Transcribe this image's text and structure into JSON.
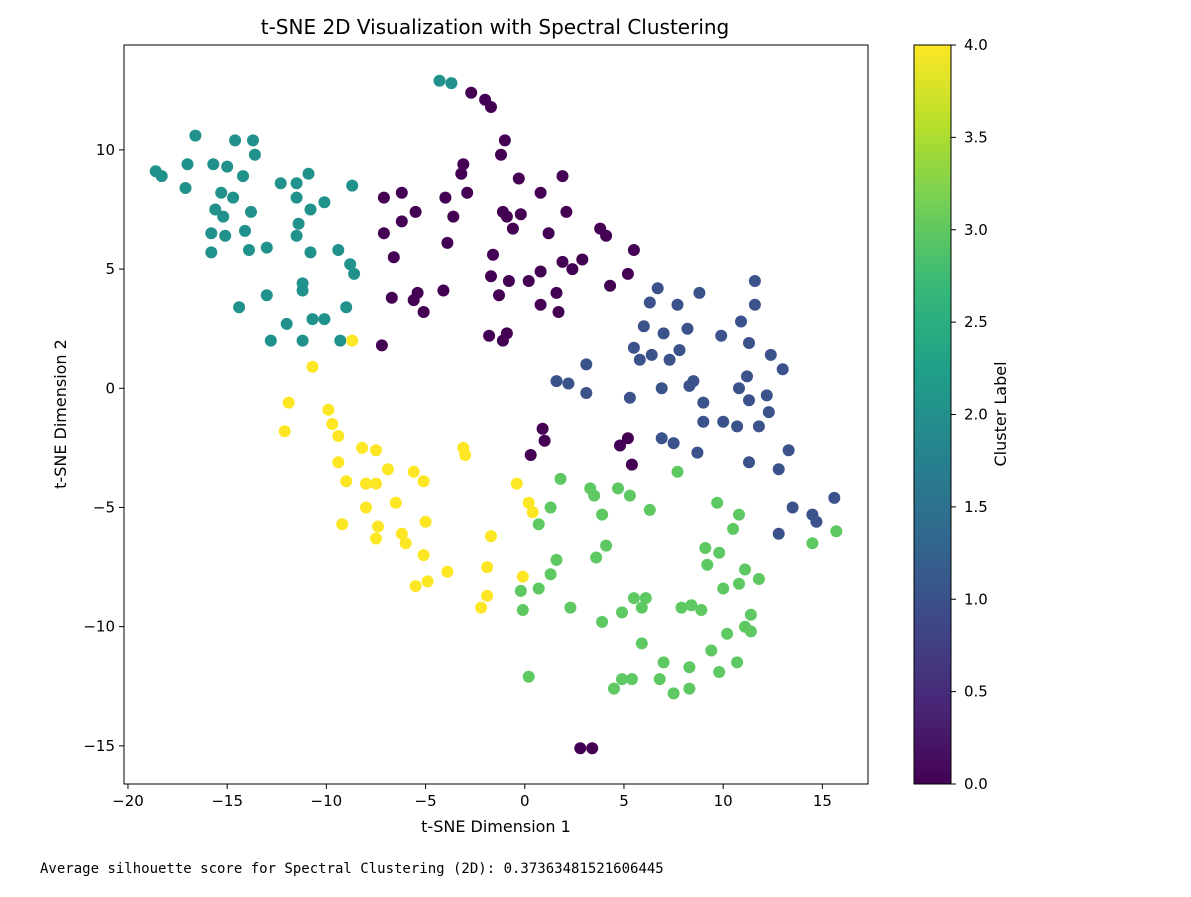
{
  "chart_data": {
    "type": "scatter",
    "title": "t-SNE 2D Visualization with Spectral Clustering",
    "xlabel": "t-SNE Dimension 1",
    "ylabel": "t-SNE Dimension 2",
    "xlim": [
      -20.2,
      17.3
    ],
    "ylim": [
      -16.6,
      14.4
    ],
    "xticks": [
      -20,
      -15,
      -10,
      -5,
      0,
      5,
      10,
      15
    ],
    "xtick_labels": [
      "−20",
      "−15",
      "−10",
      "−5",
      "0",
      "5",
      "10",
      "15"
    ],
    "yticks": [
      -15,
      -10,
      -5,
      0,
      5,
      10
    ],
    "ytick_labels": [
      "−15",
      "−10",
      "−5",
      "0",
      "5",
      "10"
    ],
    "grid": false,
    "colormap": "viridis",
    "cluster_colors": [
      "#440154",
      "#3b528b",
      "#21918c",
      "#5ec962",
      "#fde725"
    ],
    "colorbar": {
      "label": "Cluster Label",
      "range": [
        0,
        4
      ],
      "ticks": [
        0.0,
        0.5,
        1.0,
        1.5,
        2.0,
        2.5,
        3.0,
        3.5,
        4.0
      ],
      "tick_labels": [
        "0.0",
        "0.5",
        "1.0",
        "1.5",
        "2.0",
        "2.5",
        "3.0",
        "3.5",
        "4.0"
      ],
      "stops": [
        "#440154",
        "#482878",
        "#3e4989",
        "#31688e",
        "#26828e",
        "#1f9e89",
        "#35b779",
        "#6ece58",
        "#b5de2b",
        "#fde725"
      ]
    },
    "points": [
      [
        -3.7,
        12.8,
        2
      ],
      [
        -4.3,
        12.9,
        2
      ],
      [
        -16.6,
        10.6,
        2
      ],
      [
        -14.6,
        10.4,
        2
      ],
      [
        -13.7,
        10.4,
        2
      ],
      [
        -13.6,
        9.8,
        2
      ],
      [
        -15.7,
        9.4,
        2
      ],
      [
        -15.0,
        9.3,
        2
      ],
      [
        -17.0,
        9.4,
        2
      ],
      [
        -18.6,
        9.1,
        2
      ],
      [
        -18.3,
        8.9,
        2
      ],
      [
        -14.2,
        8.9,
        2
      ],
      [
        -12.3,
        8.6,
        2
      ],
      [
        -11.5,
        8.6,
        2
      ],
      [
        -10.9,
        9.0,
        2
      ],
      [
        -8.7,
        8.5,
        2
      ],
      [
        -17.1,
        8.4,
        2
      ],
      [
        -15.3,
        8.2,
        2
      ],
      [
        -14.7,
        8.0,
        2
      ],
      [
        -11.5,
        8.0,
        2
      ],
      [
        -10.1,
        7.8,
        2
      ],
      [
        -10.8,
        7.5,
        2
      ],
      [
        -15.6,
        7.5,
        2
      ],
      [
        -15.2,
        7.2,
        2
      ],
      [
        -13.8,
        7.4,
        2
      ],
      [
        -11.4,
        6.9,
        2
      ],
      [
        -14.1,
        6.6,
        2
      ],
      [
        -15.8,
        6.5,
        2
      ],
      [
        -15.1,
        6.4,
        2
      ],
      [
        -11.5,
        6.4,
        2
      ],
      [
        -13.9,
        5.8,
        2
      ],
      [
        -13.0,
        5.9,
        2
      ],
      [
        -15.8,
        5.7,
        2
      ],
      [
        -10.8,
        5.7,
        2
      ],
      [
        -9.4,
        5.8,
        2
      ],
      [
        -8.8,
        5.2,
        2
      ],
      [
        -8.6,
        4.8,
        2
      ],
      [
        -11.2,
        4.4,
        2
      ],
      [
        -11.2,
        4.1,
        2
      ],
      [
        -13.0,
        3.9,
        2
      ],
      [
        -14.4,
        3.4,
        2
      ],
      [
        -9.0,
        3.4,
        2
      ],
      [
        -10.7,
        2.9,
        2
      ],
      [
        -10.1,
        2.9,
        2
      ],
      [
        -12.0,
        2.7,
        2
      ],
      [
        -12.8,
        2.0,
        2
      ],
      [
        -11.2,
        2.0,
        2
      ],
      [
        -9.3,
        2.0,
        2
      ],
      [
        -2.7,
        12.4,
        0
      ],
      [
        -2.0,
        12.1,
        0
      ],
      [
        -1.7,
        11.8,
        0
      ],
      [
        -1.0,
        10.4,
        0
      ],
      [
        -1.2,
        9.8,
        0
      ],
      [
        -3.1,
        9.4,
        0
      ],
      [
        -3.2,
        9.0,
        0
      ],
      [
        -2.9,
        8.2,
        0
      ],
      [
        -6.2,
        8.2,
        0
      ],
      [
        -7.1,
        8.0,
        0
      ],
      [
        -4.0,
        8.0,
        0
      ],
      [
        -0.3,
        8.8,
        0
      ],
      [
        1.9,
        8.9,
        0
      ],
      [
        0.8,
        8.2,
        0
      ],
      [
        -5.5,
        7.4,
        0
      ],
      [
        -3.6,
        7.2,
        0
      ],
      [
        -6.2,
        7.0,
        0
      ],
      [
        -1.1,
        7.4,
        0
      ],
      [
        -0.9,
        7.2,
        0
      ],
      [
        -0.2,
        7.3,
        0
      ],
      [
        2.1,
        7.4,
        0
      ],
      [
        -7.1,
        6.5,
        0
      ],
      [
        -0.6,
        6.7,
        0
      ],
      [
        1.2,
        6.5,
        0
      ],
      [
        3.8,
        6.7,
        0
      ],
      [
        4.1,
        6.4,
        0
      ],
      [
        -3.9,
        6.1,
        0
      ],
      [
        5.5,
        5.8,
        0
      ],
      [
        -1.6,
        5.6,
        0
      ],
      [
        -6.6,
        5.5,
        0
      ],
      [
        1.9,
        5.3,
        0
      ],
      [
        2.9,
        5.4,
        0
      ],
      [
        2.4,
        5.0,
        0
      ],
      [
        5.2,
        4.8,
        0
      ],
      [
        -1.7,
        4.7,
        0
      ],
      [
        0.8,
        4.9,
        0
      ],
      [
        -0.8,
        4.5,
        0
      ],
      [
        0.2,
        4.5,
        0
      ],
      [
        4.3,
        4.3,
        0
      ],
      [
        -4.1,
        4.1,
        0
      ],
      [
        1.6,
        4.0,
        0
      ],
      [
        -5.4,
        4.0,
        0
      ],
      [
        -1.3,
        3.9,
        0
      ],
      [
        -6.7,
        3.8,
        0
      ],
      [
        -5.6,
        3.7,
        0
      ],
      [
        0.8,
        3.5,
        0
      ],
      [
        1.7,
        3.2,
        0
      ],
      [
        -5.1,
        3.2,
        0
      ],
      [
        -1.8,
        2.2,
        0
      ],
      [
        -0.9,
        2.3,
        0
      ],
      [
        -1.1,
        2.0,
        0
      ],
      [
        -7.2,
        1.8,
        0
      ],
      [
        0.9,
        -1.7,
        0
      ],
      [
        1.0,
        -2.2,
        0
      ],
      [
        5.2,
        -2.1,
        0
      ],
      [
        4.8,
        -2.4,
        0
      ],
      [
        0.3,
        -2.8,
        0
      ],
      [
        5.4,
        -3.2,
        0
      ],
      [
        2.8,
        -15.1,
        0
      ],
      [
        3.4,
        -15.1,
        0
      ],
      [
        11.6,
        4.5,
        1
      ],
      [
        6.7,
        4.2,
        1
      ],
      [
        8.8,
        4.0,
        1
      ],
      [
        6.3,
        3.6,
        1
      ],
      [
        7.7,
        3.5,
        1
      ],
      [
        11.6,
        3.5,
        1
      ],
      [
        10.9,
        2.8,
        1
      ],
      [
        6.0,
        2.6,
        1
      ],
      [
        8.2,
        2.5,
        1
      ],
      [
        7.0,
        2.3,
        1
      ],
      [
        9.9,
        2.2,
        1
      ],
      [
        11.3,
        1.9,
        1
      ],
      [
        5.5,
        1.7,
        1
      ],
      [
        7.8,
        1.6,
        1
      ],
      [
        6.4,
        1.4,
        1
      ],
      [
        12.4,
        1.4,
        1
      ],
      [
        5.8,
        1.2,
        1
      ],
      [
        7.3,
        1.2,
        1
      ],
      [
        3.1,
        1.0,
        1
      ],
      [
        13.0,
        0.8,
        1
      ],
      [
        11.2,
        0.5,
        1
      ],
      [
        1.6,
        0.3,
        1
      ],
      [
        8.5,
        0.3,
        1
      ],
      [
        2.2,
        0.2,
        1
      ],
      [
        8.3,
        0.1,
        1
      ],
      [
        6.9,
        0.0,
        1
      ],
      [
        10.8,
        0.0,
        1
      ],
      [
        3.1,
        -0.2,
        1
      ],
      [
        12.2,
        -0.3,
        1
      ],
      [
        5.3,
        -0.4,
        1
      ],
      [
        9.0,
        -0.6,
        1
      ],
      [
        11.3,
        -0.5,
        1
      ],
      [
        12.3,
        -1.0,
        1
      ],
      [
        9.0,
        -1.4,
        1
      ],
      [
        10.0,
        -1.4,
        1
      ],
      [
        10.7,
        -1.6,
        1
      ],
      [
        11.8,
        -1.6,
        1
      ],
      [
        6.9,
        -2.1,
        1
      ],
      [
        7.5,
        -2.3,
        1
      ],
      [
        13.3,
        -2.6,
        1
      ],
      [
        8.7,
        -2.7,
        1
      ],
      [
        11.3,
        -3.1,
        1
      ],
      [
        12.8,
        -3.4,
        1
      ],
      [
        15.6,
        -4.6,
        1
      ],
      [
        13.5,
        -5.0,
        1
      ],
      [
        14.5,
        -5.3,
        1
      ],
      [
        14.7,
        -5.6,
        1
      ],
      [
        12.8,
        -6.1,
        1
      ],
      [
        1.8,
        -3.8,
        3
      ],
      [
        7.7,
        -3.5,
        3
      ],
      [
        3.3,
        -4.2,
        3
      ],
      [
        4.7,
        -4.2,
        3
      ],
      [
        3.5,
        -4.5,
        3
      ],
      [
        5.3,
        -4.5,
        3
      ],
      [
        9.7,
        -4.8,
        3
      ],
      [
        1.3,
        -5.0,
        3
      ],
      [
        6.3,
        -5.1,
        3
      ],
      [
        3.9,
        -5.3,
        3
      ],
      [
        10.8,
        -5.3,
        3
      ],
      [
        0.7,
        -5.7,
        3
      ],
      [
        10.5,
        -5.9,
        3
      ],
      [
        15.7,
        -6.0,
        3
      ],
      [
        14.5,
        -6.5,
        3
      ],
      [
        4.1,
        -6.6,
        3
      ],
      [
        9.1,
        -6.7,
        3
      ],
      [
        9.8,
        -6.9,
        3
      ],
      [
        3.6,
        -7.1,
        3
      ],
      [
        1.6,
        -7.2,
        3
      ],
      [
        9.2,
        -7.4,
        3
      ],
      [
        11.1,
        -7.6,
        3
      ],
      [
        1.3,
        -7.8,
        3
      ],
      [
        11.8,
        -8.0,
        3
      ],
      [
        10.8,
        -8.2,
        3
      ],
      [
        0.7,
        -8.4,
        3
      ],
      [
        10.0,
        -8.4,
        3
      ],
      [
        -0.2,
        -8.5,
        3
      ],
      [
        5.5,
        -8.8,
        3
      ],
      [
        6.1,
        -8.8,
        3
      ],
      [
        8.4,
        -9.1,
        3
      ],
      [
        7.9,
        -9.2,
        3
      ],
      [
        5.9,
        -9.2,
        3
      ],
      [
        2.3,
        -9.2,
        3
      ],
      [
        -0.1,
        -9.3,
        3
      ],
      [
        8.9,
        -9.3,
        3
      ],
      [
        4.9,
        -9.4,
        3
      ],
      [
        11.4,
        -9.5,
        3
      ],
      [
        3.9,
        -9.8,
        3
      ],
      [
        11.1,
        -10.0,
        3
      ],
      [
        11.4,
        -10.2,
        3
      ],
      [
        10.2,
        -10.3,
        3
      ],
      [
        5.9,
        -10.7,
        3
      ],
      [
        9.4,
        -11.0,
        3
      ],
      [
        7.0,
        -11.5,
        3
      ],
      [
        10.7,
        -11.5,
        3
      ],
      [
        8.3,
        -11.7,
        3
      ],
      [
        9.8,
        -11.9,
        3
      ],
      [
        0.2,
        -12.1,
        3
      ],
      [
        4.9,
        -12.2,
        3
      ],
      [
        5.4,
        -12.2,
        3
      ],
      [
        6.8,
        -12.2,
        3
      ],
      [
        4.5,
        -12.6,
        3
      ],
      [
        8.3,
        -12.6,
        3
      ],
      [
        7.5,
        -12.8,
        3
      ],
      [
        -8.7,
        2.0,
        4
      ],
      [
        -10.7,
        0.9,
        4
      ],
      [
        -11.9,
        -0.6,
        4
      ],
      [
        -9.9,
        -0.9,
        4
      ],
      [
        -9.7,
        -1.5,
        4
      ],
      [
        -12.1,
        -1.8,
        4
      ],
      [
        -9.4,
        -2.0,
        4
      ],
      [
        -8.2,
        -2.5,
        4
      ],
      [
        -3.1,
        -2.5,
        4
      ],
      [
        -7.5,
        -2.6,
        4
      ],
      [
        -3.0,
        -2.8,
        4
      ],
      [
        -9.4,
        -3.1,
        4
      ],
      [
        -6.9,
        -3.4,
        4
      ],
      [
        -5.6,
        -3.5,
        4
      ],
      [
        -9.0,
        -3.9,
        4
      ],
      [
        -7.5,
        -4.0,
        4
      ],
      [
        -8.0,
        -4.0,
        4
      ],
      [
        -5.1,
        -3.9,
        4
      ],
      [
        -0.4,
        -4.0,
        4
      ],
      [
        -6.5,
        -4.8,
        4
      ],
      [
        0.2,
        -4.8,
        4
      ],
      [
        -8.0,
        -5.0,
        4
      ],
      [
        0.4,
        -5.2,
        4
      ],
      [
        -5.0,
        -5.6,
        4
      ],
      [
        -9.2,
        -5.7,
        4
      ],
      [
        -7.4,
        -5.8,
        4
      ],
      [
        -6.2,
        -6.1,
        4
      ],
      [
        -1.7,
        -6.2,
        4
      ],
      [
        -7.5,
        -6.3,
        4
      ],
      [
        -6.0,
        -6.5,
        4
      ],
      [
        -5.1,
        -7.0,
        4
      ],
      [
        -1.9,
        -7.5,
        4
      ],
      [
        -3.9,
        -7.7,
        4
      ],
      [
        -0.1,
        -7.9,
        4
      ],
      [
        -4.9,
        -8.1,
        4
      ],
      [
        -5.5,
        -8.3,
        4
      ],
      [
        -1.9,
        -8.7,
        4
      ],
      [
        -2.2,
        -9.2,
        4
      ]
    ]
  },
  "output": {
    "text": "Average silhouette score for Spectral Clustering (2D): 0.37363481521606445"
  }
}
